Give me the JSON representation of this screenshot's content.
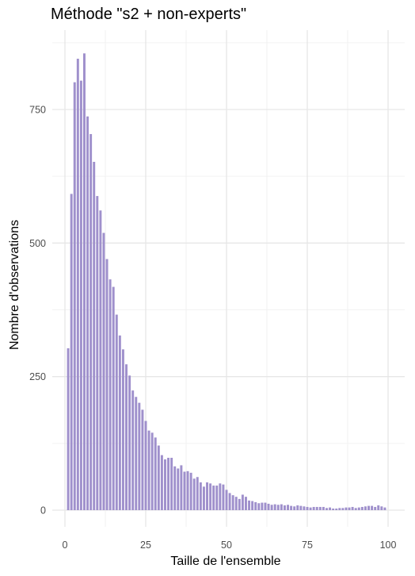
{
  "chart_data": {
    "type": "bar",
    "title": "Méthode \"s2 + non-experts\"",
    "xlabel": "Taille de l'ensemble",
    "ylabel": "Nombre d'observations",
    "xlim": [
      -1,
      102
    ],
    "ylim": [
      0,
      880
    ],
    "x_ticks": [
      0,
      25,
      50,
      75,
      100
    ],
    "y_ticks": [
      0,
      250,
      500,
      750
    ],
    "grid": true,
    "bar_color": "#9f90cc",
    "x": [
      1,
      2,
      3,
      4,
      5,
      6,
      7,
      8,
      9,
      10,
      11,
      12,
      13,
      14,
      15,
      16,
      17,
      18,
      19,
      20,
      21,
      22,
      23,
      24,
      25,
      26,
      27,
      28,
      29,
      30,
      31,
      32,
      33,
      34,
      35,
      36,
      37,
      38,
      39,
      40,
      41,
      42,
      43,
      44,
      45,
      46,
      47,
      48,
      49,
      50,
      51,
      52,
      53,
      54,
      55,
      56,
      57,
      58,
      59,
      60,
      61,
      62,
      63,
      64,
      65,
      66,
      67,
      68,
      69,
      70,
      71,
      72,
      73,
      74,
      75,
      76,
      77,
      78,
      79,
      80,
      81,
      82,
      83,
      84,
      85,
      86,
      87,
      88,
      89,
      90,
      91,
      92,
      93,
      94,
      95,
      96,
      97,
      98,
      99
    ],
    "values": [
      303,
      592,
      801,
      845,
      804,
      855,
      737,
      704,
      652,
      588,
      561,
      519,
      470,
      432,
      418,
      366,
      327,
      301,
      273,
      252,
      224,
      212,
      201,
      188,
      167,
      149,
      145,
      136,
      121,
      103,
      95,
      98,
      98,
      82,
      78,
      84,
      72,
      73,
      70,
      59,
      62,
      52,
      44,
      52,
      50,
      46,
      46,
      50,
      48,
      38,
      32,
      28,
      25,
      21,
      29,
      25,
      18,
      17,
      15,
      13,
      14,
      14,
      12,
      10,
      11,
      10,
      11,
      9,
      10,
      8,
      7,
      9,
      8,
      7,
      6,
      5,
      6,
      6,
      6,
      6,
      4,
      5,
      3,
      3,
      4,
      4,
      5,
      5,
      6,
      4,
      5,
      6,
      7,
      8,
      8,
      6,
      9,
      7,
      5
    ]
  }
}
